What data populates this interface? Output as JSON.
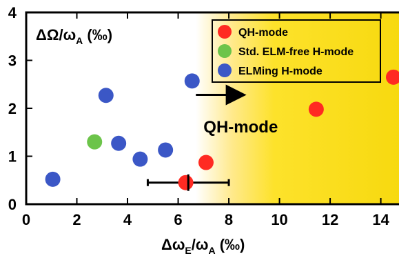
{
  "chart_data": {
    "type": "scatter",
    "title": "",
    "xlabel": {
      "main": "Δω",
      "sub1": "E",
      "mid": "/ω",
      "sub2": "A",
      "unit": " (‰)"
    },
    "ylabel": {
      "main": "ΔΩ/ω",
      "sub": "A",
      "unit": " (‰)"
    },
    "xlim": [
      0,
      14.8
    ],
    "ylim": [
      0,
      4
    ],
    "xticks": [
      "0",
      "2",
      "4",
      "6",
      "8",
      "10",
      "12",
      "14"
    ],
    "yticks": [
      "0",
      "1",
      "2",
      "3",
      "4"
    ],
    "grid": false,
    "legend_position": "top-right",
    "region": {
      "label": "QH-mode",
      "x_start": 6.7,
      "gradient": [
        "#ffffff",
        "#ffe98a",
        "#fde22b",
        "#f7d90f"
      ]
    },
    "series": [
      {
        "name": "QH-mode",
        "color": "#ff2a22",
        "points": [
          [
            6.3,
            0.45
          ],
          [
            7.1,
            0.87
          ],
          [
            11.45,
            1.98
          ],
          [
            14.5,
            2.65
          ]
        ]
      },
      {
        "name": "Std. ELM-free H-mode",
        "color": "#6cc44a",
        "points": [
          [
            2.7,
            1.3
          ]
        ]
      },
      {
        "name": "ELMing H-mode",
        "color": "#3b57c6",
        "points": [
          [
            1.05,
            0.52
          ],
          [
            3.15,
            2.27
          ],
          [
            3.65,
            1.27
          ],
          [
            4.5,
            0.94
          ],
          [
            5.5,
            1.13
          ],
          [
            6.55,
            2.57
          ]
        ]
      }
    ],
    "error_bar": {
      "x": 6.4,
      "y": 0.45,
      "x_low": 4.8,
      "x_high": 8.0
    },
    "annotations": [
      {
        "text": "QH-mode",
        "x": 7.0,
        "y": 1.5
      }
    ],
    "arrow": {
      "from": [
        6.7,
        2.28
      ],
      "to": [
        8.75,
        2.28
      ]
    }
  }
}
